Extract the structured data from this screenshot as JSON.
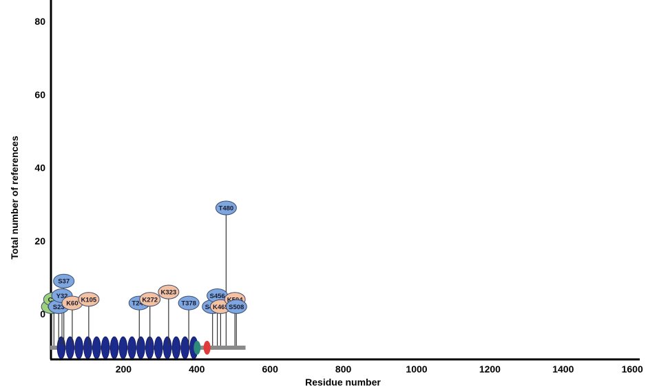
{
  "chart_data": {
    "type": "lollipop",
    "xlabel": "Residue number",
    "ylabel": "Total number of references",
    "xlim": [
      0,
      1600
    ],
    "ylim": [
      -12,
      85
    ],
    "x_ticks": [
      200,
      400,
      600,
      800,
      1000,
      1200,
      1400,
      1600
    ],
    "y_ticks": [
      0,
      20,
      40,
      60,
      80
    ],
    "protein_length": 533,
    "ptm_colors": {
      "phospho": "#7ea6e0",
      "acetyl": "#f4c2a2",
      "other": "#9dd17b"
    },
    "sites": [
      {
        "label": "C4",
        "residue": 4,
        "type": "other",
        "value": 2
      },
      {
        "label": "C10",
        "residue": 10,
        "type": "other",
        "value": 4
      },
      {
        "label": "S23",
        "residue": 23,
        "type": "phospho",
        "value": 2
      },
      {
        "label": "Y32",
        "residue": 32,
        "type": "phospho",
        "value": 5
      },
      {
        "label": "S37",
        "residue": 37,
        "type": "phospho",
        "value": 9
      },
      {
        "label": "K60",
        "residue": 60,
        "type": "acetyl",
        "value": 3
      },
      {
        "label": "K105",
        "residue": 105,
        "type": "acetyl",
        "value": 4
      },
      {
        "label": "T243",
        "residue": 243,
        "type": "phospho",
        "value": 3
      },
      {
        "label": "K272",
        "residue": 272,
        "type": "acetyl",
        "value": 4
      },
      {
        "label": "K323",
        "residue": 323,
        "type": "acetyl",
        "value": 6
      },
      {
        "label": "T378",
        "residue": 378,
        "type": "phospho",
        "value": 3
      },
      {
        "label": "S443",
        "residue": 443,
        "type": "phospho",
        "value": 2
      },
      {
        "label": "S456",
        "residue": 456,
        "type": "phospho",
        "value": 5
      },
      {
        "label": "K465",
        "residue": 465,
        "type": "acetyl",
        "value": 2
      },
      {
        "label": "T480",
        "residue": 480,
        "type": "phospho",
        "value": 29
      },
      {
        "label": "K504",
        "residue": 504,
        "type": "acetyl",
        "value": 4
      },
      {
        "label": "S508",
        "residue": 508,
        "type": "phospho",
        "value": 2
      }
    ],
    "domains": {
      "repeat_color": "#1c2a8c",
      "repeat_start": 30,
      "repeat_end": 392,
      "repeat_count": 16,
      "extra": [
        {
          "residue": 401,
          "color": "#2e8b7a"
        },
        {
          "residue": 428,
          "color": "#e03a3a"
        }
      ]
    }
  }
}
